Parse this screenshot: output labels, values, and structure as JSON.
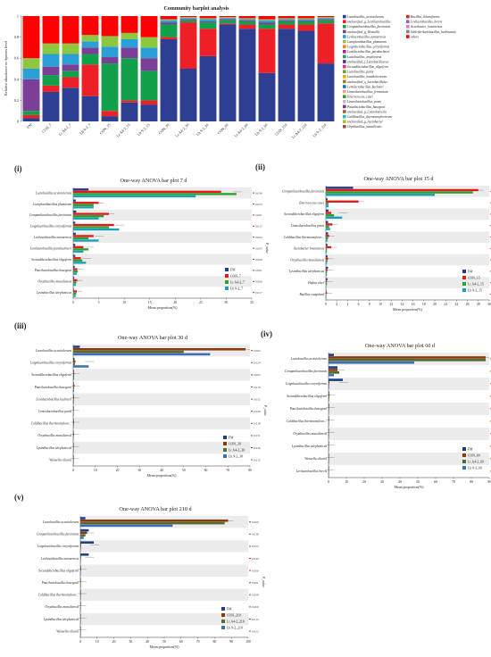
{
  "top": {
    "title": "Community barplot analysis",
    "ylabel": "Relative abundance on Species level",
    "yticks": [
      "0",
      "0.2",
      "0.4",
      "0.6",
      "0.8",
      "1"
    ],
    "samples": [
      "FM",
      "CON_7",
      "Lr A4-2_7",
      "Lb 9-2_7",
      "CON_15",
      "Lr A4-2_15",
      "Lb 9-2_15",
      "CON_30",
      "Lr A4-2_30",
      "Lb 9-2_30",
      "CON_60",
      "Lr A4-2_60",
      "Lb 9-2_60",
      "CON_210",
      "Lr A4-2_210",
      "Lb 9-2_210"
    ],
    "legend": [
      {
        "name": "Lactobacillus_acetotolerans",
        "color": "#2e3f93"
      },
      {
        "name": "unclassified_g_Lentilactobacillus",
        "color": "#ee2027"
      },
      {
        "name": "Companilactobacillus_farciminis",
        "color": "#13a04a"
      },
      {
        "name": "unclassified_g_Weissella",
        "color": "#7b3f98"
      },
      {
        "name": "Levilactobacillus_namurensis",
        "color": "#2a9fd6"
      },
      {
        "name": "Lactiplantibacillus_plantarum",
        "color": "#8dc63f"
      },
      {
        "name": "Loigolactobacillus_coryniformis",
        "color": "#f4811f"
      },
      {
        "name": "Lentilactobacillus_parabuchneri",
        "color": "#b11f8f"
      },
      {
        "name": "Lactobacillus_amylovorus",
        "color": "#1b9e77"
      },
      {
        "name": "unclassified_f_Lactobacillaceae",
        "color": "#5b2c83"
      },
      {
        "name": "Secundilactobacillus_oligoferm",
        "color": "#e7298a"
      },
      {
        "name": "Lactobacillus_panis",
        "color": "#66a61e"
      },
      {
        "name": "Lactobacillus_manihotivorans",
        "color": "#e6ab02"
      },
      {
        "name": "unclassified_o_Lactobacillales",
        "color": "#a6761d"
      },
      {
        "name": "Lentilactobacillus_buchneri",
        "color": "#1f78b4"
      },
      {
        "name": "Limosilactobacillus_fermentum",
        "color": "#fb9a99"
      },
      {
        "name": "Enterococcus_casei",
        "color": "#33a02c"
      },
      {
        "name": "Limosilactobacillus_panis",
        "color": "#cab2d6"
      },
      {
        "name": "Paucilactobacillus_hasegawi",
        "color": "#6a3d9a"
      },
      {
        "name": "unclassified_g_Cyanobacteria",
        "color": "#b15928"
      },
      {
        "name": "Caldibacillus_thermoamylovorans",
        "color": "#17becf"
      },
      {
        "name": "unclassified_g_Acetobacter",
        "color": "#bcbd22"
      },
      {
        "name": "Oryzibacillus_massiliensis",
        "color": "#8c564b"
      },
      {
        "name": "Bacillus_licheniformis",
        "color": "#d62728"
      },
      {
        "name": "Levilactobacillus_brevis",
        "color": "#9467bd"
      },
      {
        "name": "Acetobacter_lovaniensis",
        "color": "#e377c2"
      },
      {
        "name": "Schleiferilactobacillus_harbinensis",
        "color": "#7f7f7f"
      },
      {
        "name": "others",
        "color": "#ff0000"
      }
    ]
  },
  "chart_data": [
    {
      "type": "bar",
      "title": "Community barplot analysis",
      "stacked": true,
      "xlabel": "",
      "ylabel": "Relative abundance on Species level",
      "ylim": [
        0,
        1
      ],
      "categories": [
        "FM",
        "CON_7",
        "Lr A4-2_7",
        "Lb 9-2_7",
        "CON_15",
        "Lr A4-2_15",
        "Lb 9-2_15",
        "CON_30",
        "Lr A4-2_30",
        "Lb 9-2_30",
        "CON_60",
        "Lr A4-2_60",
        "Lb 9-2_60",
        "CON_210",
        "Lr A4-2_210",
        "Lb 9-2_210"
      ],
      "series": [
        {
          "name": "Lactobacillus_acetotolerans",
          "values": [
            0.03,
            0.28,
            0.32,
            0.24,
            0.05,
            0.18,
            0.16,
            0.78,
            0.5,
            0.62,
            0.92,
            0.88,
            0.46,
            0.88,
            0.86,
            0.55
          ]
        },
        {
          "name": "unclassified_g_Lentilactobacillus",
          "values": [
            0.03,
            0.06,
            0.1,
            0.3,
            0.05,
            0.02,
            0.04,
            0.02,
            0.44,
            0.26,
            0.01,
            0.04,
            0.42,
            0.04,
            0.06,
            0.38
          ]
        },
        {
          "name": "Companilactobacillus_farciminis",
          "values": [
            0.04,
            0.1,
            0.06,
            0.1,
            0.45,
            0.4,
            0.28,
            0.12,
            0.02,
            0.06,
            0.03,
            0.03,
            0.04,
            0.03,
            0.03,
            0.03
          ]
        },
        {
          "name": "unclassified_g_Weissella",
          "values": [
            0.3,
            0.08,
            0.06,
            0.06,
            0.06,
            0.1,
            0.12,
            0.02,
            0.01,
            0.01,
            0.01,
            0.01,
            0.02,
            0.01,
            0.01,
            0.01
          ]
        },
        {
          "name": "Levilactobacillus_namurensis",
          "values": [
            0.1,
            0.12,
            0.1,
            0.06,
            0.1,
            0.08,
            0.1,
            0.02,
            0.01,
            0.02,
            0.01,
            0.01,
            0.02,
            0.01,
            0.01,
            0.01
          ]
        },
        {
          "name": "Lactiplantibacillus_plantarum",
          "values": [
            0.1,
            0.1,
            0.1,
            0.06,
            0.1,
            0.06,
            0.1,
            0.01,
            0.01,
            0.01,
            0.01,
            0.01,
            0.01,
            0.01,
            0.01,
            0.01
          ]
        },
        {
          "name": "others",
          "values": [
            0.4,
            0.26,
            0.26,
            0.18,
            0.19,
            0.16,
            0.2,
            0.03,
            0.01,
            0.02,
            0.01,
            0.02,
            0.03,
            0.02,
            0.02,
            0.01
          ]
        }
      ]
    },
    {
      "type": "bar",
      "panel": "(i)",
      "title": "One-way ANOVA bar plot 7 d",
      "orientation": "horizontal",
      "xlabel": "Mean proportion(%)",
      "ylabel": "",
      "xlim": [
        0,
        35
      ],
      "xticks": [
        "0",
        "5",
        "10",
        "15",
        "20",
        "25",
        "30",
        "35"
      ],
      "categories": [
        "Lactobacillus acetotolerans",
        "Lactiplantibacillus plantarum",
        "Companilactobacillus farciminis",
        "Loigolactobacillus coryniformis",
        "Levilactobacillus namurensis",
        "Lentilactobacillus parabuchneri",
        "Secundilactobacillus oligoferm",
        "Paucilactobacillus hasegawi",
        "Oryzibacillus massiliensis",
        "Lysinibacillus telephonicus"
      ],
      "pvalues": [
        "0.038",
        "0.023",
        "0.001",
        "0.017",
        "0.004",
        "0.003",
        "0.008",
        "0.001",
        "0.006",
        "0.017"
      ],
      "series": [
        {
          "name": "FM",
          "values": [
            3,
            0.5,
            0.6,
            0.4,
            0.5,
            0.4,
            0.4,
            0.3,
            0.2,
            0.1
          ]
        },
        {
          "name": "CON_7",
          "values": [
            29,
            5,
            7,
            8,
            4,
            2,
            1.5,
            0.8,
            0.8,
            0.7
          ]
        },
        {
          "name": "Lr A4-2_7",
          "values": [
            32,
            4,
            6,
            7,
            3,
            3,
            1.8,
            0.9,
            0.6,
            0.6
          ]
        },
        {
          "name": "Lb 9-2_7",
          "values": [
            24,
            4,
            5,
            9,
            5,
            2,
            2.5,
            0.7,
            0.5,
            0.5
          ]
        }
      ]
    },
    {
      "type": "bar",
      "panel": "(ii)",
      "title": "One-way ANOVA bar plot 15 d",
      "orientation": "horizontal",
      "xlabel": "Mean proportion(%)",
      "ylabel": "",
      "xlim": [
        0,
        30
      ],
      "xticks": [
        "0",
        "2",
        "4",
        "6",
        "8",
        "10",
        "12",
        "14",
        "16",
        "18",
        "20",
        "22",
        "24",
        "26",
        "28",
        "30"
      ],
      "categories": [
        "Companilactobacillus farciminis",
        "Enterococcus casei",
        "Secundilactobacillus oligoferm",
        "Limosilactobacillus panis",
        "Caldibacillus thermoamylovo...",
        "Acetobacter lovaniensis",
        "Oryzibacillus massiliensis",
        "Lysinibacillus telephonicus",
        "Hafnia alvei",
        "Bacillus coagulans"
      ],
      "pvalues": [
        "0.028",
        "0.016",
        "0.006",
        "0.004",
        "0.013",
        "0.005",
        "0.031",
        "0.005",
        "0.023",
        "0.031"
      ],
      "series": [
        {
          "name": "FM",
          "values": [
            5,
            0.3,
            0.5,
            0.4,
            0.4,
            0.3,
            0.3,
            0.4,
            0.3,
            0.1
          ]
        },
        {
          "name": "CON_15",
          "values": [
            28,
            6,
            1,
            1.2,
            0.6,
            1.0,
            0.4,
            0.3,
            0.2,
            0.2
          ]
        },
        {
          "name": "Lr A4-2_15",
          "values": [
            27,
            0.5,
            1.5,
            0.6,
            0.4,
            0.2,
            0.3,
            0.2,
            0.2,
            0.1
          ]
        },
        {
          "name": "Lb 9-2_15",
          "values": [
            20,
            0.5,
            3,
            0.8,
            0.3,
            0.2,
            0.2,
            0.2,
            0.1,
            0.1
          ]
        }
      ]
    },
    {
      "type": "bar",
      "panel": "(iii)",
      "title": "One-way ANOVA bar plot 30 d",
      "orientation": "horizontal",
      "xlabel": "Mean proportion(%)",
      "ylabel": "",
      "xlim": [
        0,
        80
      ],
      "xticks": [
        "0",
        "10",
        "20",
        "30",
        "40",
        "50",
        "60",
        "70",
        "80"
      ],
      "categories": [
        "Lactobacillus acetotolerans",
        "Loigolactobacillus coryniformis",
        "Secundilactobacillus oligoferm",
        "Paucilactobacillus hasegawi",
        "Lentilactobacillus buchneri",
        "Limosilactobacillus panis",
        "Caldibacillus thermoamylovo...",
        "Oryzibacillus massiliensis",
        "Lysinibacillus telephonicus",
        "Weissella cibaria"
      ],
      "pvalues": [
        "0.004",
        "0.024",
        "0.005",
        "0.016",
        "0.032",
        "0.006",
        "0.018",
        "0.031",
        "0.036",
        "0.015"
      ],
      "series": [
        {
          "name": "FM",
          "values": [
            3,
            0.6,
            0.3,
            0.3,
            0.3,
            0.3,
            0.2,
            0.2,
            0.2,
            0.2
          ]
        },
        {
          "name": "CON_30",
          "values": [
            78,
            1.0,
            0.5,
            0.6,
            0.4,
            0.3,
            0.4,
            0.4,
            0.3,
            0.3
          ]
        },
        {
          "name": "Lr A4-2_30",
          "values": [
            50,
            0.8,
            0.4,
            0.4,
            0.3,
            0.2,
            0.3,
            0.2,
            0.2,
            0.2
          ]
        },
        {
          "name": "Lb 9-2_30",
          "values": [
            62,
            7,
            0.4,
            0.4,
            0.3,
            0.2,
            0.2,
            0.2,
            0.2,
            0.2
          ]
        }
      ]
    },
    {
      "type": "bar",
      "panel": "(iv)",
      "title": "One-way ANOVA bar plot 60 d",
      "orientation": "horizontal",
      "xlabel": "Mean proportion(%)",
      "ylabel": "",
      "xlim": [
        0,
        90
      ],
      "xticks": [
        "0",
        "10",
        "20",
        "30",
        "40",
        "50",
        "60",
        "70",
        "80",
        "90"
      ],
      "categories": [
        "Lactobacillus acetotolerans",
        "Companilactobacillus farciminis",
        "Loigolactobacillus coryniformis",
        "Secundilactobacillus oligoferm",
        "Paucilactobacillus hasegawi",
        "Caldibacillus thermoamylovo...",
        "Oryzibacillus massiliensis",
        "Lysinibacillus telephonicus",
        "Weissella cibaria",
        "Levilactobacillus brevis"
      ],
      "pvalues": [
        "0.000",
        "0.034",
        "0.025",
        "0.001",
        "0.006",
        "0.017",
        "0.009",
        "0.000",
        "0.019",
        "0.014"
      ],
      "series": [
        {
          "name": "FM",
          "values": [
            3,
            5,
            8,
            0.4,
            0.4,
            0.3,
            0.3,
            0.3,
            0.2,
            0.2
          ]
        },
        {
          "name": "CON_60",
          "values": [
            88,
            5,
            0.5,
            0.6,
            0.4,
            0.4,
            0.3,
            0.3,
            0.3,
            0.2
          ]
        },
        {
          "name": "Lr A4-2_60",
          "values": [
            88,
            6,
            0.4,
            0.5,
            0.3,
            0.3,
            0.2,
            0.2,
            0.2,
            0.2
          ]
        },
        {
          "name": "Lb 9-2_60",
          "values": [
            48,
            3,
            0.4,
            0.4,
            0.3,
            0.2,
            0.2,
            0.2,
            0.2,
            0.2
          ]
        }
      ]
    },
    {
      "type": "bar",
      "panel": "(v)",
      "title": "One-way ANOVA bar plot 210 d",
      "orientation": "horizontal",
      "xlabel": "Mean proportion(%)",
      "ylabel": "",
      "xlim": [
        0,
        100
      ],
      "xticks": [
        "0",
        "10",
        "20",
        "30",
        "40",
        "50",
        "60",
        "70",
        "80",
        "90",
        "100"
      ],
      "categories": [
        "Lactobacillus acetotolerans",
        "Companilactobacillus farciminis",
        "Loigolactobacillus coryniformis",
        "Levilactobacillus namurensis",
        "Secundilactobacillus oligoferm",
        "Paucilactobacillus hasegawi",
        "Caldibacillus thermoamylovo...",
        "Oryzibacillus massiliensis",
        "Lysinibacillus telephonicus",
        "Weissella cibaria"
      ],
      "pvalues": [
        "0.000",
        "0.038",
        "0.022",
        "0.040",
        "0.000",
        "0.001",
        "0.009",
        "0.009",
        "0.013",
        "0.022"
      ],
      "series": [
        {
          "name": "FM",
          "values": [
            3,
            5,
            8,
            5,
            0.4,
            0.3,
            0.3,
            0.3,
            0.2,
            0.2
          ]
        },
        {
          "name": "CON_210",
          "values": [
            88,
            4,
            0.5,
            0.4,
            0.5,
            0.4,
            0.4,
            0.3,
            0.3,
            0.3
          ]
        },
        {
          "name": "Lr A4-2_210",
          "values": [
            86,
            3,
            0.4,
            0.3,
            0.3,
            0.3,
            0.2,
            0.2,
            0.2,
            0.2
          ]
        },
        {
          "name": "Lb 9-2_210",
          "values": [
            55,
            2,
            0.3,
            0.3,
            0.3,
            0.2,
            0.2,
            0.2,
            0.2,
            0.2
          ]
        }
      ]
    }
  ],
  "anova": {
    "colors": [
      "#1f3d8a",
      "#e31a1c",
      "#2ca02c",
      "#17a2b8"
    ],
    "colors_late": [
      "#1f3d8a",
      "#8b3a0e",
      "#556b2f",
      "#3c6fb4"
    ],
    "pvalue_label": "P_value"
  }
}
